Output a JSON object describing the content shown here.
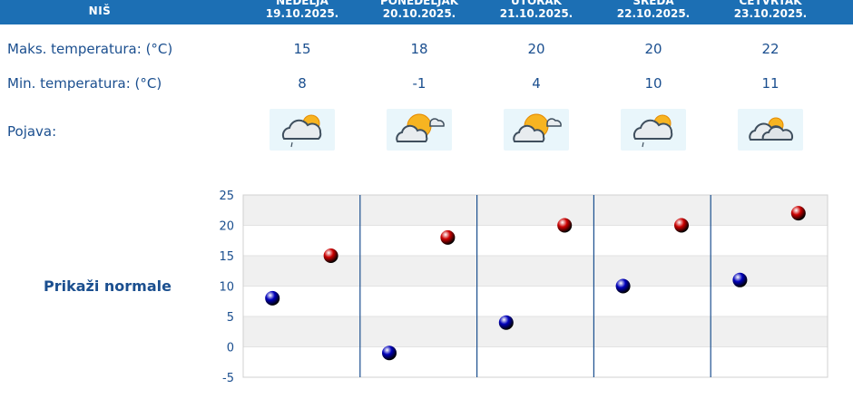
{
  "header": {
    "city": "NIŠ",
    "days": [
      {
        "name": "NEDELJA",
        "date": "19.10.2025."
      },
      {
        "name": "PONEDELJAK",
        "date": "20.10.2025."
      },
      {
        "name": "UTORAK",
        "date": "21.10.2025."
      },
      {
        "name": "SREDA",
        "date": "22.10.2025."
      },
      {
        "name": "ČETVRTAK",
        "date": "23.10.2025."
      }
    ]
  },
  "rows": {
    "max_label": "Maks. temperatura: (°C)",
    "min_label": "Min. temperatura: (°C)",
    "phenomena_label": "Pojava:",
    "max_values": [
      "15",
      "18",
      "20",
      "20",
      "22"
    ],
    "min_values": [
      "8",
      "-1",
      "4",
      "10",
      "11"
    ],
    "icons": [
      "partly-cloudy-drizzle-icon",
      "sun-cloud-icon",
      "sun-cloud-icon",
      "partly-cloudy-drizzle-icon",
      "cloudy-sun-icon"
    ]
  },
  "normals_link": "Prikaži normale",
  "colors": {
    "header_bg": "#1c6fb4",
    "text": "#1b4f8f",
    "max_marker": "#cc0000",
    "min_marker": "#0000bb"
  },
  "chart_data": {
    "type": "scatter",
    "categories": [
      "19.10.2025.",
      "20.10.2025.",
      "21.10.2025.",
      "22.10.2025.",
      "23.10.2025."
    ],
    "series": [
      {
        "name": "",
        "color": "#0000bb",
        "values": [
          8,
          -1,
          4,
          10,
          11
        ]
      },
      {
        "name": "",
        "color": "#cc0000",
        "values": [
          15,
          18,
          20,
          20,
          22
        ]
      }
    ],
    "yticks": [
      "25",
      "20",
      "15",
      "10",
      "5",
      "0",
      "-5"
    ],
    "ylim": [
      -5,
      25
    ],
    "grid": true
  }
}
